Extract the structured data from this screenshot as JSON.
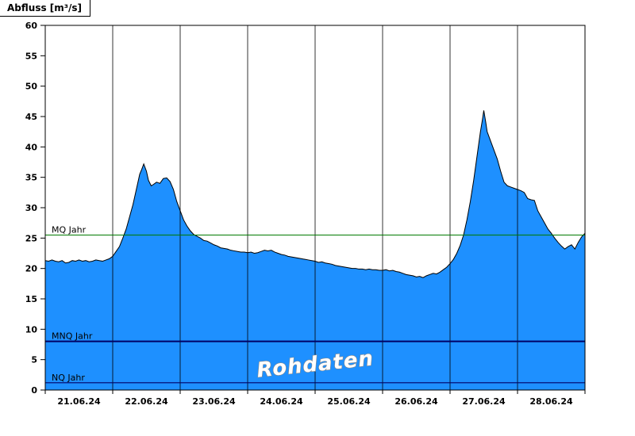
{
  "title": "Abfluss [m³/s]",
  "watermark": "Rohdaten",
  "colors": {
    "area_fill": "#1E90FF",
    "area_stroke": "#000000",
    "grid_line": "#000000",
    "axis": "#000000",
    "mq_line": "#007A00",
    "mnq_line": "#000066",
    "nq_line": "#000066",
    "watermark_fill": "#FFFFFF",
    "watermark_outline": "#8A8A8A"
  },
  "chart_data": {
    "type": "area",
    "title": "Abfluss [m³/s]",
    "xlabel": "",
    "ylabel": "Abfluss [m³/s]",
    "ylim": [
      0,
      60
    ],
    "ytick_step": 5,
    "grid": "vertical-day-lines",
    "x_days": [
      "21.06.24",
      "22.06.24",
      "23.06.24",
      "24.06.24",
      "25.06.24",
      "26.06.24",
      "27.06.24",
      "28.06.24"
    ],
    "reference_lines": [
      {
        "label": "MQ Jahr",
        "value": 25.5,
        "color": "#007A00",
        "width": 1
      },
      {
        "label": "MNQ Jahr",
        "value": 8.0,
        "color": "#000066",
        "width": 2
      },
      {
        "label": "NQ Jahr",
        "value": 1.2,
        "color": "#000066",
        "width": 1.2
      }
    ],
    "annotations": [
      "Rohdaten"
    ],
    "series": [
      {
        "name": "Rohdaten",
        "unit": "m³/s",
        "points": [
          [
            0.0,
            21.3
          ],
          [
            0.05,
            21.2
          ],
          [
            0.1,
            21.4
          ],
          [
            0.15,
            21.2
          ],
          [
            0.2,
            21.1
          ],
          [
            0.25,
            21.3
          ],
          [
            0.3,
            20.9
          ],
          [
            0.35,
            21.0
          ],
          [
            0.4,
            21.3
          ],
          [
            0.45,
            21.2
          ],
          [
            0.5,
            21.4
          ],
          [
            0.55,
            21.2
          ],
          [
            0.6,
            21.3
          ],
          [
            0.65,
            21.1
          ],
          [
            0.7,
            21.2
          ],
          [
            0.75,
            21.4
          ],
          [
            0.8,
            21.3
          ],
          [
            0.85,
            21.2
          ],
          [
            0.9,
            21.4
          ],
          [
            0.95,
            21.6
          ],
          [
            1.0,
            22.0
          ],
          [
            1.05,
            22.8
          ],
          [
            1.1,
            23.6
          ],
          [
            1.15,
            25.0
          ],
          [
            1.2,
            26.5
          ],
          [
            1.25,
            28.5
          ],
          [
            1.3,
            30.5
          ],
          [
            1.35,
            33.0
          ],
          [
            1.4,
            35.5
          ],
          [
            1.43,
            36.3
          ],
          [
            1.46,
            37.2
          ],
          [
            1.5,
            36.0
          ],
          [
            1.53,
            34.5
          ],
          [
            1.57,
            33.6
          ],
          [
            1.6,
            33.8
          ],
          [
            1.65,
            34.2
          ],
          [
            1.7,
            34.0
          ],
          [
            1.75,
            34.8
          ],
          [
            1.8,
            34.9
          ],
          [
            1.85,
            34.3
          ],
          [
            1.9,
            33.0
          ],
          [
            1.95,
            31.0
          ],
          [
            2.0,
            29.5
          ],
          [
            2.05,
            28.0
          ],
          [
            2.1,
            27.0
          ],
          [
            2.15,
            26.2
          ],
          [
            2.2,
            25.6
          ],
          [
            2.25,
            25.3
          ],
          [
            2.3,
            25.0
          ],
          [
            2.35,
            24.6
          ],
          [
            2.4,
            24.5
          ],
          [
            2.45,
            24.2
          ],
          [
            2.5,
            23.9
          ],
          [
            2.55,
            23.7
          ],
          [
            2.6,
            23.4
          ],
          [
            2.65,
            23.3
          ],
          [
            2.7,
            23.2
          ],
          [
            2.75,
            23.0
          ],
          [
            2.8,
            22.9
          ],
          [
            2.85,
            22.8
          ],
          [
            2.9,
            22.7
          ],
          [
            2.95,
            22.7
          ],
          [
            3.0,
            22.6
          ],
          [
            3.05,
            22.7
          ],
          [
            3.1,
            22.5
          ],
          [
            3.15,
            22.6
          ],
          [
            3.2,
            22.8
          ],
          [
            3.25,
            23.0
          ],
          [
            3.3,
            22.9
          ],
          [
            3.35,
            23.0
          ],
          [
            3.4,
            22.7
          ],
          [
            3.45,
            22.5
          ],
          [
            3.5,
            22.3
          ],
          [
            3.55,
            22.2
          ],
          [
            3.6,
            22.0
          ],
          [
            3.65,
            21.9
          ],
          [
            3.7,
            21.8
          ],
          [
            3.75,
            21.7
          ],
          [
            3.8,
            21.6
          ],
          [
            3.85,
            21.5
          ],
          [
            3.9,
            21.4
          ],
          [
            3.95,
            21.3
          ],
          [
            4.0,
            21.2
          ],
          [
            4.05,
            21.0
          ],
          [
            4.1,
            21.1
          ],
          [
            4.15,
            20.9
          ],
          [
            4.2,
            20.8
          ],
          [
            4.25,
            20.7
          ],
          [
            4.3,
            20.5
          ],
          [
            4.35,
            20.4
          ],
          [
            4.4,
            20.3
          ],
          [
            4.45,
            20.2
          ],
          [
            4.5,
            20.1
          ],
          [
            4.55,
            20.0
          ],
          [
            4.6,
            20.0
          ],
          [
            4.65,
            19.9
          ],
          [
            4.7,
            19.9
          ],
          [
            4.75,
            19.8
          ],
          [
            4.8,
            19.9
          ],
          [
            4.85,
            19.8
          ],
          [
            4.9,
            19.8
          ],
          [
            4.95,
            19.7
          ],
          [
            5.0,
            19.7
          ],
          [
            5.05,
            19.8
          ],
          [
            5.1,
            19.6
          ],
          [
            5.15,
            19.7
          ],
          [
            5.2,
            19.5
          ],
          [
            5.25,
            19.4
          ],
          [
            5.3,
            19.2
          ],
          [
            5.35,
            19.0
          ],
          [
            5.4,
            18.9
          ],
          [
            5.45,
            18.8
          ],
          [
            5.5,
            18.6
          ],
          [
            5.55,
            18.7
          ],
          [
            5.6,
            18.5
          ],
          [
            5.65,
            18.8
          ],
          [
            5.7,
            19.0
          ],
          [
            5.75,
            19.2
          ],
          [
            5.8,
            19.1
          ],
          [
            5.85,
            19.4
          ],
          [
            5.9,
            19.8
          ],
          [
            5.95,
            20.2
          ],
          [
            6.0,
            20.8
          ],
          [
            6.05,
            21.5
          ],
          [
            6.1,
            22.5
          ],
          [
            6.15,
            23.8
          ],
          [
            6.2,
            25.5
          ],
          [
            6.25,
            28.0
          ],
          [
            6.3,
            31.0
          ],
          [
            6.35,
            34.5
          ],
          [
            6.4,
            38.5
          ],
          [
            6.45,
            42.5
          ],
          [
            6.48,
            44.5
          ],
          [
            6.5,
            46.0
          ],
          [
            6.53,
            44.0
          ],
          [
            6.55,
            42.5
          ],
          [
            6.6,
            41.0
          ],
          [
            6.65,
            39.5
          ],
          [
            6.7,
            38.0
          ],
          [
            6.75,
            36.0
          ],
          [
            6.8,
            34.2
          ],
          [
            6.85,
            33.6
          ],
          [
            6.9,
            33.4
          ],
          [
            6.95,
            33.2
          ],
          [
            7.0,
            33.0
          ],
          [
            7.05,
            32.8
          ],
          [
            7.1,
            32.5
          ],
          [
            7.15,
            31.5
          ],
          [
            7.2,
            31.3
          ],
          [
            7.25,
            31.2
          ],
          [
            7.3,
            29.5
          ],
          [
            7.35,
            28.5
          ],
          [
            7.4,
            27.5
          ],
          [
            7.45,
            26.5
          ],
          [
            7.5,
            25.8
          ],
          [
            7.55,
            25.0
          ],
          [
            7.6,
            24.3
          ],
          [
            7.65,
            23.7
          ],
          [
            7.7,
            23.2
          ],
          [
            7.75,
            23.6
          ],
          [
            7.8,
            23.9
          ],
          [
            7.85,
            23.2
          ],
          [
            7.9,
            24.3
          ],
          [
            7.95,
            25.2
          ],
          [
            8.0,
            25.8
          ]
        ]
      }
    ]
  }
}
